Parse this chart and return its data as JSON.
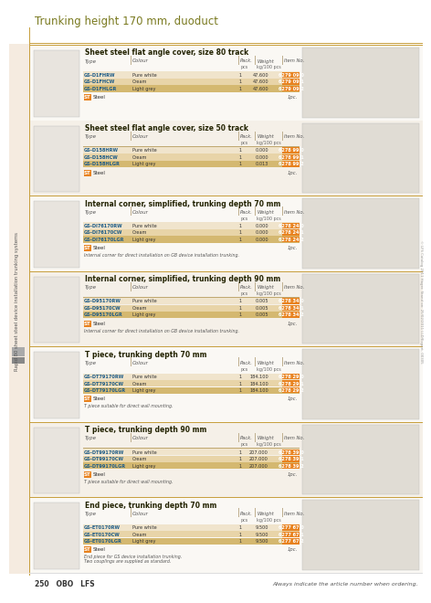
{
  "title": "Trunking height 170 mm, duoduct",
  "page_bg": "#ffffff",
  "left_bg": "#f5ebe0",
  "separator_color": "#c8a040",
  "orange_badge": "#e8821e",
  "sidebar_text": "Rapid 80 sheet steel device installation trunking systems",
  "footer_left": "250   OBO   LFS",
  "footer_right": "Always indicate the article number when ordering.",
  "footer_tiny": "© LFS Catalog 2011 Hager. Stand on: 25/02/2011 LLD/Export. 00305",
  "row_colors": [
    "#f5ede0",
    "#ead5b0",
    "#d4b060"
  ],
  "section_bg": "#ffffff",
  "header_line_color": "#c8a040",
  "col_line_color": "#d0c0a0",
  "sections": [
    {
      "title": "Sheet steel flat angle cover, size 80 track",
      "rows": [
        [
          "GS-D1FHRW",
          "Pure white",
          "1",
          "47.600",
          "6279 09 0"
        ],
        [
          "GS-D1FHCW",
          "Cream",
          "1",
          "47.600",
          "6279 09 1"
        ],
        [
          "GS-D1FHLGR",
          "Light grey",
          "1",
          "47.600",
          "6279 09 2"
        ]
      ],
      "badge": "ST",
      "badge_text": "Steel",
      "note": "",
      "unit": "1pc."
    },
    {
      "title": "Sheet steel flat angle cover, size 50 track",
      "rows": [
        [
          "GS-D158HRW",
          "Pure white",
          "1",
          "0.000",
          "6278 99 0"
        ],
        [
          "GS-D158HCW",
          "Cream",
          "1",
          "0.000",
          "6278 99 1"
        ],
        [
          "GS-D158HLGR",
          "Light grey",
          "1",
          "0.013",
          "6278 99 2"
        ]
      ],
      "badge": "ST",
      "badge_text": "Steel",
      "note": "",
      "unit": "1pc."
    },
    {
      "title": "Internal corner, simplified, trunking depth 70 mm",
      "rows": [
        [
          "GS-DI76170RW",
          "Pure white",
          "1",
          "0.000",
          "6278 24 0"
        ],
        [
          "GS-DI76170CW",
          "Cream",
          "1",
          "0.000",
          "6278 24 1"
        ],
        [
          "GS-DI76170LGR",
          "Light grey",
          "1",
          "0.000",
          "6278 24 2"
        ]
      ],
      "badge": "ST",
      "badge_text": "Steel",
      "note": "Internal corner for direct installation on GB device installation trunking.",
      "unit": "1pc."
    },
    {
      "title": "Internal corner, simplified, trunking depth 90 mm",
      "rows": [
        [
          "GS-D95170RW",
          "Pure white",
          "1",
          "0.005",
          "6278 34 0"
        ],
        [
          "GS-D95170CW",
          "Cream",
          "1",
          "0.005",
          "6278 34 1"
        ],
        [
          "GS-D95170LGR",
          "Light grey",
          "1",
          "0.005",
          "6278 34 2"
        ]
      ],
      "badge": "ST",
      "badge_text": "Steel",
      "note": "Internal corner for direct installation on GB device installation trunking.",
      "unit": "1pc."
    },
    {
      "title": "T piece, trunking depth 70 mm",
      "rows": [
        [
          "GS-DT79170RW",
          "Pure white",
          "1",
          "184.100",
          "6278 29 0"
        ],
        [
          "GS-DT79170CW",
          "Cream",
          "1",
          "184.100",
          "6278 29 1"
        ],
        [
          "GS-DT79170LGR",
          "Light grey",
          "1",
          "184.100",
          "6278 29 2"
        ]
      ],
      "badge": "ST",
      "badge_text": "Steel",
      "note": "T piece suitable for direct wall mounting.",
      "unit": "1pc."
    },
    {
      "title": "T piece, trunking depth 90 mm",
      "rows": [
        [
          "GS-DT99170RW",
          "Pure white",
          "1",
          "207.000",
          "6278 39 0"
        ],
        [
          "GS-DT99170CW",
          "Cream",
          "1",
          "207.000",
          "6278 39 1"
        ],
        [
          "GS-DT99170LGR",
          "Light grey",
          "1",
          "207.000",
          "6278 39 2"
        ]
      ],
      "badge": "ST",
      "badge_text": "Steel",
      "note": "T piece suitable for direct wall mounting.",
      "unit": "1pc."
    },
    {
      "title": "End piece, trunking depth 70 mm",
      "rows": [
        [
          "GS-ET0170RW",
          "Pure white",
          "1",
          "9.500",
          "6277 67 0"
        ],
        [
          "GS-ET0170CW",
          "Cream",
          "1",
          "9.500",
          "6277 67 1"
        ],
        [
          "GS-ET0170LGR",
          "Light grey",
          "1",
          "9.500",
          "6277 67 2"
        ]
      ],
      "badge": "ST",
      "badge_text": "Steel",
      "note": "End piece for GS device installation trunking.\nTwo couplings are supplied as standard.",
      "unit": "1pc."
    }
  ]
}
